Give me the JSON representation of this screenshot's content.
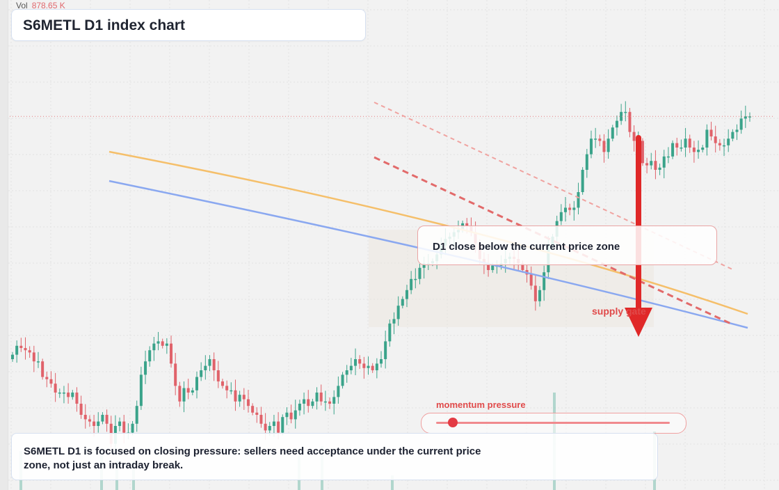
{
  "header": {
    "vol_label": "Vol",
    "vol_value": "878.65 K"
  },
  "title": "S6METL D1 index chart",
  "callout": "D1 close below the current price zone",
  "supply_label": "supply gate",
  "momentum": {
    "label": "momentum pressure",
    "level": 0.07
  },
  "note": "S6METL D1 is focused on closing pressure: sellers need acceptance under the current price zone, not just an intraday break.",
  "colors": {
    "up": "#3aa38a",
    "down": "#e0626a",
    "orange_line": "#f5bf6a",
    "blue_line": "#8aa8f0",
    "arrow": "#e02828",
    "current_price_line": "#e57c80"
  },
  "chart_data": {
    "type": "candlestick",
    "closes": [
      0.47,
      0.51,
      0.5,
      0.49,
      0.48,
      0.44,
      0.44,
      0.37,
      0.36,
      0.34,
      0.3,
      0.3,
      0.3,
      0.28,
      0.3,
      0.25,
      0.2,
      0.18,
      0.17,
      0.15,
      0.17,
      0.2,
      0.16,
      0.07,
      0.15,
      0.17,
      0.12,
      0.12,
      0.16,
      0.24,
      0.38,
      0.44,
      0.49,
      0.52,
      0.53,
      0.51,
      0.52,
      0.43,
      0.33,
      0.26,
      0.32,
      0.3,
      0.31,
      0.37,
      0.4,
      0.42,
      0.45,
      0.4,
      0.35,
      0.33,
      0.31,
      0.31,
      0.26,
      0.29,
      0.27,
      0.24,
      0.21,
      0.2,
      0.16,
      0.13,
      0.15,
      0.17,
      0.12,
      0.19,
      0.21,
      0.18,
      0.22,
      0.25,
      0.27,
      0.24,
      0.26,
      0.3,
      0.26,
      0.26,
      0.25,
      0.28,
      0.33,
      0.38,
      0.4,
      0.42,
      0.45,
      0.43,
      0.41,
      0.42,
      0.4,
      0.43,
      0.45,
      0.53,
      0.61,
      0.63,
      0.69,
      0.72,
      0.76,
      0.81,
      0.81,
      0.86,
      0.88,
      0.88,
      0.89,
      0.92,
      0.96,
      0.99,
      1.0,
      1.02,
      1.03,
      1.06,
      1.05,
      1.02,
      0.97,
      0.9,
      0.88,
      0.85,
      0.87,
      0.87,
      0.88,
      0.9,
      0.91,
      0.9,
      0.88,
      0.85,
      0.83,
      0.78,
      0.71,
      0.76,
      0.84,
      0.96,
      1.0,
      1.07,
      1.11,
      1.13,
      1.12,
      1.13,
      1.2,
      1.3,
      1.37,
      1.44,
      1.44,
      1.43,
      1.38,
      1.44,
      1.49,
      1.52,
      1.56,
      1.56,
      1.47,
      1.43,
      1.43,
      1.33,
      1.32,
      1.34,
      1.3,
      1.31,
      1.36,
      1.36,
      1.42,
      1.4,
      1.4,
      1.44,
      1.4,
      1.38,
      1.39,
      1.4,
      1.48,
      1.45,
      1.42,
      1.41,
      1.41,
      1.44,
      1.47,
      1.48,
      1.53,
      1.54,
      1.54
    ],
    "ylim": [
      0,
      2
    ],
    "current_price": 1.54
  }
}
